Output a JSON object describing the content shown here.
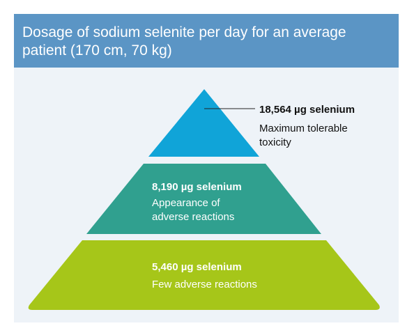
{
  "header": {
    "title": "Dosage of sodium selenite per day for an average patient (170 cm, 70 kg)"
  },
  "levels": [
    {
      "amount": "18,564 µg selenium",
      "description": [
        "Maximum tolerable",
        "toxicity"
      ]
    },
    {
      "amount": "8,190 µg selenium",
      "description": [
        "Appearance of",
        "adverse reactions"
      ]
    },
    {
      "amount": "5,460 µg selenium",
      "description": [
        "Few adverse reactions"
      ]
    }
  ]
}
